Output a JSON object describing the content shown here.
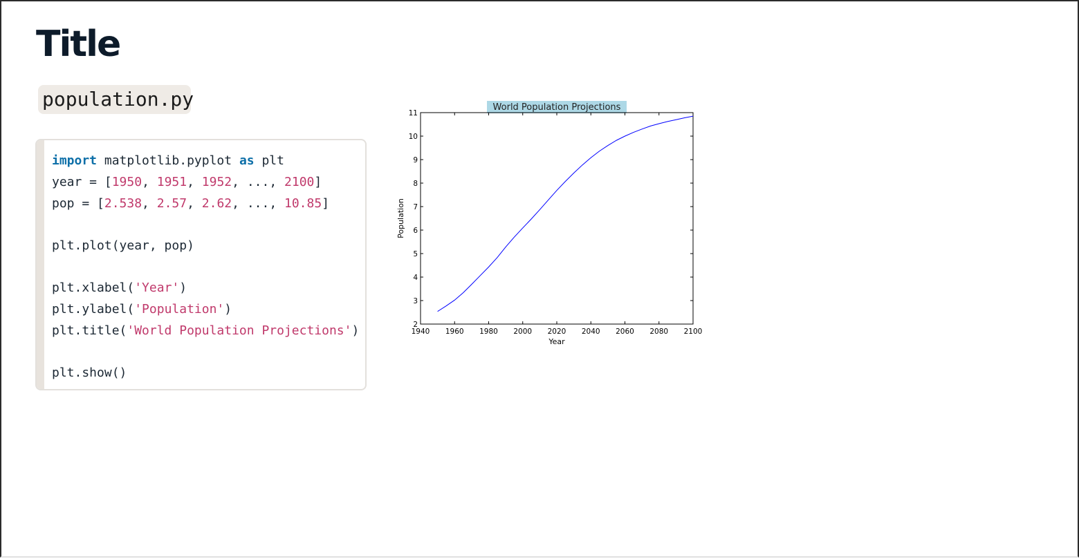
{
  "page": {
    "title": "Title",
    "filename": "population.py"
  },
  "code": {
    "lines": [
      [
        {
          "t": "import",
          "c": "kw"
        },
        {
          "t": " matplotlib.pyplot "
        },
        {
          "t": "as",
          "c": "kw"
        },
        {
          "t": " plt"
        }
      ],
      [
        {
          "t": "year = ["
        },
        {
          "t": "1950",
          "c": "num"
        },
        {
          "t": ", "
        },
        {
          "t": "1951",
          "c": "num"
        },
        {
          "t": ", "
        },
        {
          "t": "1952",
          "c": "num"
        },
        {
          "t": ", ..., "
        },
        {
          "t": "2100",
          "c": "num"
        },
        {
          "t": "]"
        }
      ],
      [
        {
          "t": "pop = ["
        },
        {
          "t": "2.538",
          "c": "num"
        },
        {
          "t": ", "
        },
        {
          "t": "2.57",
          "c": "num"
        },
        {
          "t": ", "
        },
        {
          "t": "2.62",
          "c": "num"
        },
        {
          "t": ", ..., "
        },
        {
          "t": "10.85",
          "c": "num"
        },
        {
          "t": "]"
        }
      ],
      [],
      [
        {
          "t": "plt.plot(year, pop)"
        }
      ],
      [],
      [
        {
          "t": "plt.xlabel("
        },
        {
          "t": "'Year'",
          "c": "str"
        },
        {
          "t": ")"
        }
      ],
      [
        {
          "t": "plt.ylabel("
        },
        {
          "t": "'Population'",
          "c": "str"
        },
        {
          "t": ")"
        }
      ],
      [
        {
          "t": "plt.title("
        },
        {
          "t": "'World Population Projections'",
          "c": "str"
        },
        {
          "t": ")"
        }
      ],
      [],
      [
        {
          "t": "plt.show()"
        }
      ]
    ]
  },
  "colors": {
    "keyword": "#0d6fa8",
    "literal": "#c0396b",
    "line": "#0000ff",
    "title_highlight": "#add8e6"
  },
  "chart_data": {
    "type": "line",
    "title": "World Population Projections",
    "xlabel": "Year",
    "ylabel": "Population",
    "xlim": [
      1940,
      2100
    ],
    "ylim": [
      2,
      11
    ],
    "xticks": [
      1940,
      1960,
      1980,
      2000,
      2020,
      2040,
      2060,
      2080,
      2100
    ],
    "yticks": [
      2,
      3,
      4,
      5,
      6,
      7,
      8,
      9,
      10,
      11
    ],
    "grid": false,
    "legend": "none",
    "series": [
      {
        "x": [
          1950,
          1955,
          1960,
          1965,
          1970,
          1975,
          1980,
          1985,
          1990,
          1995,
          2000,
          2005,
          2010,
          2015,
          2020,
          2025,
          2030,
          2035,
          2040,
          2045,
          2050,
          2055,
          2060,
          2065,
          2070,
          2075,
          2080,
          2085,
          2090,
          2095,
          2100
        ],
        "y": [
          2.538,
          2.77,
          3.02,
          3.33,
          3.69,
          4.06,
          4.43,
          4.83,
          5.28,
          5.7,
          6.09,
          6.47,
          6.87,
          7.28,
          7.69,
          8.07,
          8.43,
          8.77,
          9.08,
          9.36,
          9.6,
          9.82,
          10.0,
          10.16,
          10.3,
          10.43,
          10.53,
          10.62,
          10.7,
          10.78,
          10.85
        ]
      }
    ]
  }
}
